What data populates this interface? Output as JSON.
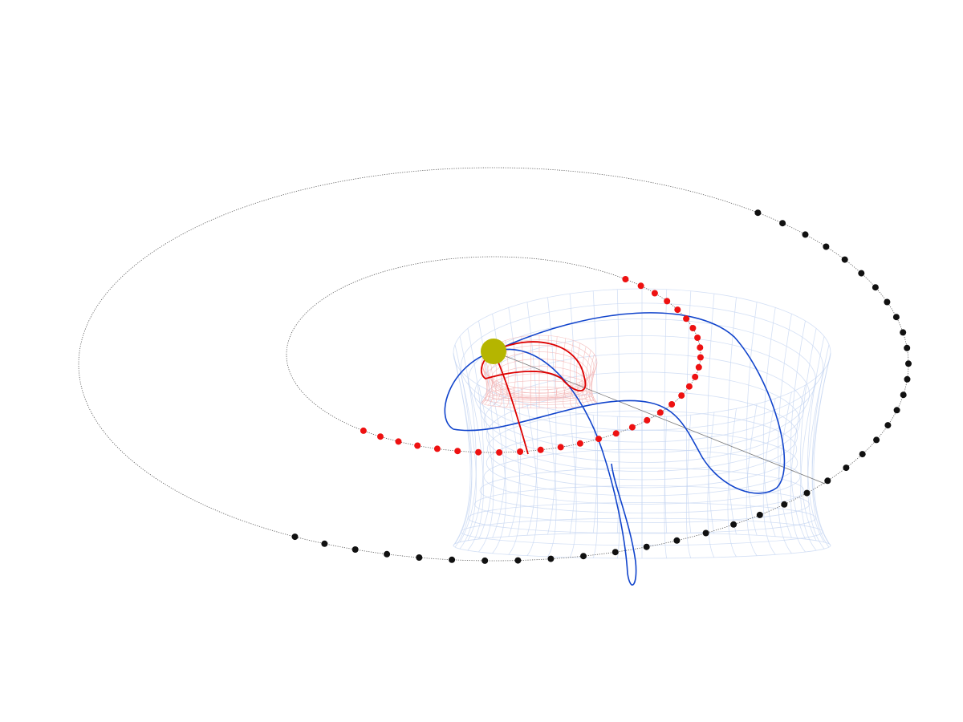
{
  "scene": {
    "title": "",
    "colors": {
      "background": "#ffffff",
      "orbit_line": "#555555",
      "outer_markers": "#111111",
      "inner_markers": "#ee1111",
      "central_body": "#b5b500",
      "outer_trajectory": "#1144cc",
      "inner_trajectory": "#dd0000",
      "outer_mesh": "#c6d6f2",
      "inner_mesh": "#f3b3b3"
    },
    "elements": [
      "central-body",
      "outer-orbit",
      "inner-orbit",
      "outer-orbit-markers",
      "inner-orbit-markers",
      "outer-halo-mesh",
      "inner-halo-mesh",
      "outer-trajectory",
      "inner-trajectory",
      "radial-line"
    ],
    "marker_counts": {
      "outer_orbit": 38,
      "inner_orbit": 32
    }
  }
}
